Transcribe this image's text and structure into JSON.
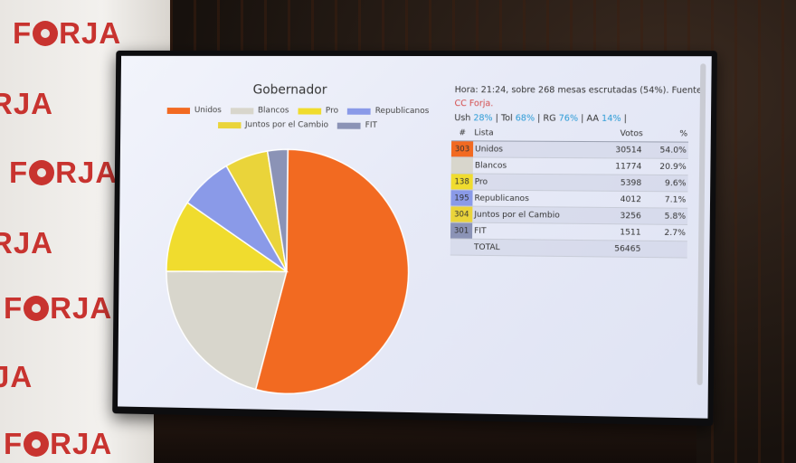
{
  "banner": {
    "word": "FORJA",
    "color": "#c8332f"
  },
  "chart_data": {
    "type": "pie",
    "title": "Gobernador",
    "legend_placement": "top",
    "slices": [
      {
        "label": "Unidos",
        "value": 54.0,
        "color": "#f26a21"
      },
      {
        "label": "Blancos",
        "value": 20.9,
        "color": "#d8d6cc"
      },
      {
        "label": "Pro",
        "value": 9.6,
        "color": "#f0dc2e"
      },
      {
        "label": "Republicanos",
        "value": 7.1,
        "color": "#8a9ae8"
      },
      {
        "label": "Juntos por el Cambio",
        "value": 5.8,
        "color": "#ead43a"
      },
      {
        "label": "FIT",
        "value": 2.7,
        "color": "#8b93b6"
      }
    ]
  },
  "info": {
    "line1": "Hora: 21:24, sobre 268 mesas escrutadas (54%). Fuente:",
    "source": "CC Forja.",
    "stats": [
      {
        "label": "Ush",
        "value": "28%"
      },
      {
        "label": "Tol",
        "value": "68%"
      },
      {
        "label": "RG",
        "value": "76%"
      },
      {
        "label": "AA",
        "value": "14%"
      }
    ]
  },
  "table": {
    "headers": {
      "num": "#",
      "lista": "Lista",
      "votos": "Votos",
      "pct": "%"
    },
    "rows": [
      {
        "num": "303",
        "lista": "Unidos",
        "votos": "30514",
        "pct": "54.0%",
        "color": "#f26a21"
      },
      {
        "num": "",
        "lista": "Blancos",
        "votos": "11774",
        "pct": "20.9%",
        "color": "#d8d6cc"
      },
      {
        "num": "138",
        "lista": "Pro",
        "votos": "5398",
        "pct": "9.6%",
        "color": "#f0dc2e"
      },
      {
        "num": "195",
        "lista": "Republicanos",
        "votos": "4012",
        "pct": "7.1%",
        "color": "#8a9ae8"
      },
      {
        "num": "304",
        "lista": "Juntos por el Cambio",
        "votos": "3256",
        "pct": "5.8%",
        "color": "#ead43a"
      },
      {
        "num": "301",
        "lista": "FIT",
        "votos": "1511",
        "pct": "2.7%",
        "color": "#8b93b6"
      }
    ],
    "total": {
      "label": "TOTAL",
      "votos": "56465"
    }
  }
}
